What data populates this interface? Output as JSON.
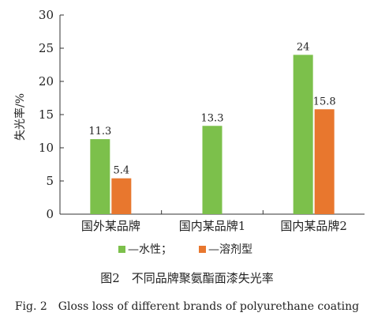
{
  "chart_data": {
    "type": "bar",
    "ylabel": "失光率/%",
    "categories": [
      "国外某品牌",
      "国内某品牌1",
      "国内某品牌2"
    ],
    "series": [
      {
        "name": "水性",
        "legend_text": "—水性；",
        "color": "#7cc04b",
        "values": [
          11.3,
          13.3,
          24
        ],
        "labels": [
          "11.3",
          "13.3",
          "24"
        ]
      },
      {
        "name": "溶剂型",
        "legend_text": "—溶剂型",
        "color": "#e8772e",
        "values": [
          5.4,
          null,
          15.8
        ],
        "labels": [
          "5.4",
          "",
          "15.8"
        ]
      }
    ],
    "ylim": [
      0,
      30
    ],
    "yticks": [
      0,
      5,
      10,
      15,
      20,
      25,
      30
    ],
    "grid": false,
    "legend_position": "bottom-center",
    "caption_cn": "图2　不同品牌聚氨酯面漆失光率",
    "caption_en": "Fig. 2　Gloss loss of different brands of polyurethane coating"
  }
}
